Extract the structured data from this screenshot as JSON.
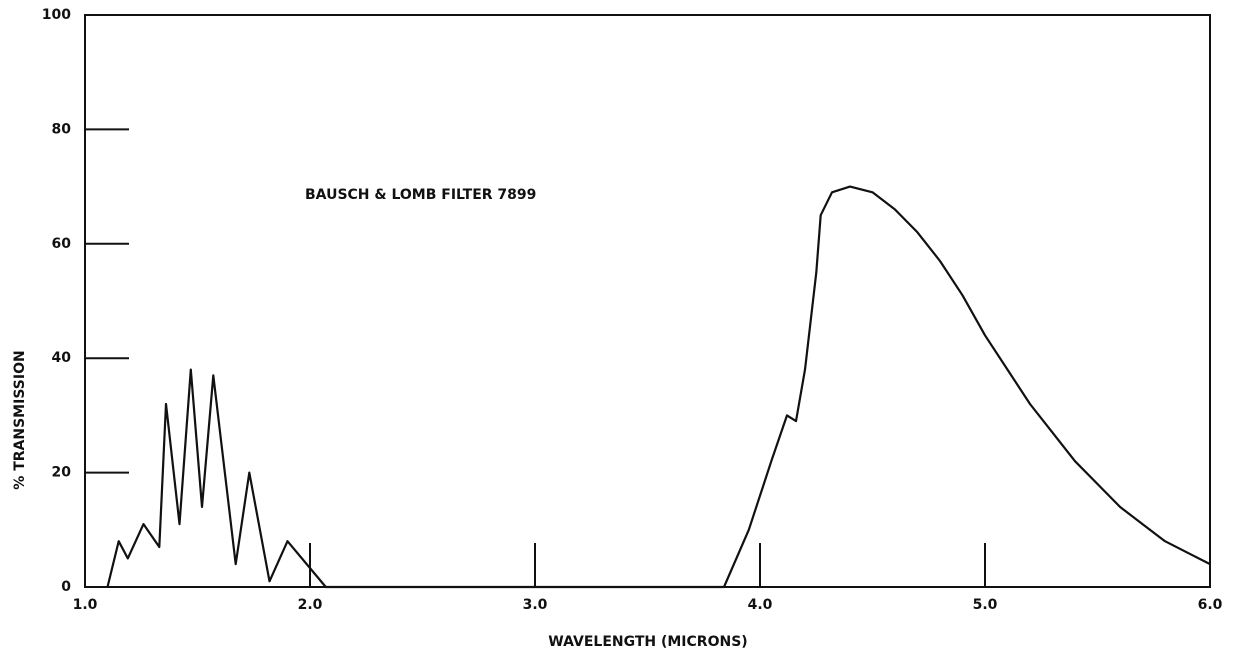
{
  "chart_data": {
    "type": "line",
    "annotation": "BAUSCH & LOMB FILTER 7899",
    "x_label": "WAVELENGTH (MICRONS)",
    "y_label": "% TRANSMISSION",
    "x": [
      1.1,
      1.15,
      1.19,
      1.26,
      1.33,
      1.36,
      1.42,
      1.47,
      1.52,
      1.57,
      1.67,
      1.73,
      1.82,
      1.9,
      2.07,
      3.84,
      3.95,
      4.05,
      4.12,
      4.16,
      4.2,
      4.25,
      4.27,
      4.32,
      4.4,
      4.5,
      4.6,
      4.7,
      4.8,
      4.9,
      5.0,
      5.1,
      5.2,
      5.3,
      5.4,
      5.5,
      5.6,
      5.7,
      5.8,
      5.9,
      6.0
    ],
    "values": [
      0,
      8,
      5,
      11,
      7,
      32,
      11,
      38,
      14,
      37,
      4,
      20,
      1,
      8,
      0,
      0,
      10,
      22,
      30,
      29,
      38,
      55,
      65,
      69,
      70,
      69,
      66,
      62,
      57,
      51,
      44,
      38,
      32,
      27,
      22,
      18,
      14,
      11,
      8,
      6,
      4
    ],
    "color": "#111111",
    "xlim": [
      1,
      6
    ],
    "xticks": [
      {
        "value": 1,
        "label": "1.0"
      },
      {
        "value": 2,
        "label": "2.0"
      },
      {
        "value": 3,
        "label": "3.0"
      },
      {
        "value": 4,
        "label": "4.0"
      },
      {
        "value": 5,
        "label": "5.0"
      },
      {
        "value": 6,
        "label": "6.0"
      }
    ],
    "ylim": [
      0,
      100
    ],
    "yticks": [
      0,
      20,
      40,
      60,
      80,
      100
    ]
  }
}
